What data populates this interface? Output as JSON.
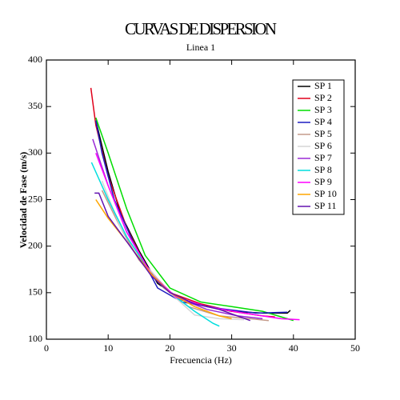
{
  "chart_data": {
    "type": "line",
    "title": "CURVAS DE DISPERSION",
    "subtitle": "Linea 1",
    "x_label": "Frecuencia (Hz)",
    "y_label": "Velocidad de Fase (m/s)",
    "xlim": [
      0,
      50
    ],
    "ylim": [
      100,
      400
    ],
    "xticks": [
      0,
      10,
      20,
      30,
      40,
      50
    ],
    "yticks": [
      100,
      150,
      200,
      250,
      300,
      350,
      400
    ],
    "legend": "upper-right",
    "grid": false,
    "series": [
      {
        "name": "SP 1",
        "color": "#000000",
        "x": [
          8,
          10,
          12,
          15,
          18,
          22,
          26,
          30,
          35,
          39,
          39.5
        ],
        "values": [
          335,
          280,
          235,
          195,
          160,
          142,
          135,
          130,
          128,
          128,
          131
        ]
      },
      {
        "name": "SP 2",
        "color": "#e0001a",
        "x": [
          7.2,
          8,
          10,
          13,
          16,
          20,
          25,
          30,
          35,
          37
        ],
        "values": [
          370,
          330,
          275,
          220,
          180,
          150,
          138,
          130,
          125,
          124
        ]
      },
      {
        "name": "SP 3",
        "color": "#00dd00",
        "x": [
          8,
          10,
          13,
          16,
          20,
          25,
          30,
          35,
          39,
          40
        ],
        "values": [
          338,
          300,
          240,
          190,
          155,
          140,
          135,
          130,
          122,
          120
        ]
      },
      {
        "name": "SP 4",
        "color": "#1c1cc0",
        "x": [
          8,
          9,
          11,
          14,
          18,
          22,
          28,
          34,
          39
        ],
        "values": [
          335,
          300,
          250,
          205,
          155,
          140,
          133,
          128,
          129
        ]
      },
      {
        "name": "SP 5",
        "color": "#c49a8a",
        "x": [
          9,
          12,
          15,
          19,
          23,
          28,
          33,
          36
        ],
        "values": [
          260,
          220,
          185,
          155,
          135,
          125,
          122,
          120
        ]
      },
      {
        "name": "SP 6",
        "color": "#d6d6d6",
        "x": [
          9,
          12,
          16,
          20,
          24,
          28,
          32
        ],
        "values": [
          270,
          220,
          180,
          150,
          126,
          122,
          121
        ]
      },
      {
        "name": "SP 7",
        "color": "#9a2ad6",
        "x": [
          7.5,
          10,
          13,
          17,
          21,
          26,
          31,
          35
        ],
        "values": [
          315,
          265,
          215,
          170,
          145,
          132,
          125,
          122
        ]
      },
      {
        "name": "SP 8",
        "color": "#00dede",
        "x": [
          7.3,
          10,
          13,
          17,
          21,
          24,
          27,
          28
        ],
        "values": [
          290,
          250,
          210,
          170,
          145,
          130,
          117,
          114
        ]
      },
      {
        "name": "SP 9",
        "color": "#ff00ff",
        "x": [
          8,
          10,
          13,
          17,
          21,
          26,
          32,
          38,
          41
        ],
        "values": [
          300,
          265,
          215,
          170,
          145,
          135,
          128,
          122,
          121
        ]
      },
      {
        "name": "SP 10",
        "color": "#ffa500",
        "x": [
          8,
          10,
          13,
          17,
          20,
          24,
          28,
          30
        ],
        "values": [
          250,
          230,
          205,
          170,
          150,
          135,
          125,
          122
        ]
      },
      {
        "name": "SP 11",
        "color": "#6212b0",
        "x": [
          7.8,
          8.5,
          10,
          13,
          17,
          20,
          24,
          28,
          33
        ],
        "values": [
          257,
          257,
          232,
          205,
          168,
          150,
          138,
          132,
          120
        ]
      }
    ]
  }
}
